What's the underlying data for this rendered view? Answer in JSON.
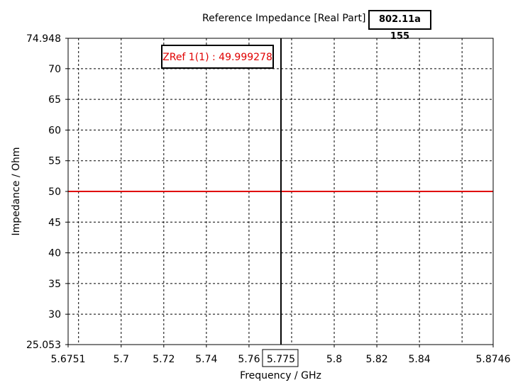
{
  "header": {
    "title": "Reference Impedance [Real Part]",
    "badge": "802.11a 155"
  },
  "chart_data": {
    "type": "line",
    "title": "Reference Impedance [Real Part]",
    "xlabel": "Frequency / GHz",
    "ylabel": "Impedance / Ohm",
    "xlim": [
      5.6751,
      5.8746
    ],
    "ylim": [
      25.053,
      74.948
    ],
    "grid": true,
    "x_ticks": [
      "5.6751",
      "5.7",
      "5.72",
      "5.74",
      "5.76",
      "5.775",
      "5.8",
      "5.82",
      "5.84",
      "5.8746"
    ],
    "y_ticks": [
      "74.948",
      "70",
      "65",
      "60",
      "55",
      "50",
      "45",
      "40",
      "35",
      "30",
      "25.053"
    ],
    "series": [
      {
        "name": "ZRef 1(1)",
        "color": "#e00000",
        "x": [
          5.6751,
          5.8746
        ],
        "y": [
          49.999278,
          49.999278
        ]
      }
    ],
    "marker": {
      "x": 5.775,
      "x_label": "5.775",
      "annotation": "ZRef 1(1) : 49.999278",
      "annotation_color": "#e00000"
    }
  }
}
